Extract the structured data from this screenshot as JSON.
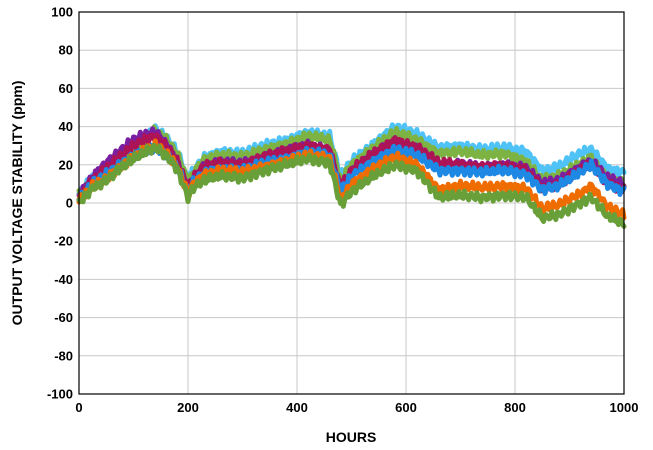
{
  "chart_data": {
    "type": "line",
    "xlabel": "HOURS",
    "ylabel": "OUTPUT VOLTAGE STABILITY (ppm)",
    "xlim": [
      0,
      1000
    ],
    "ylim": [
      -100,
      100
    ],
    "x_ticks": [
      "0",
      "200",
      "400",
      "600",
      "800",
      "1000"
    ],
    "y_ticks": [
      "100",
      "80",
      "60",
      "40",
      "20",
      "0",
      "-20",
      "-40",
      "-60",
      "-80",
      "-100"
    ],
    "grid": true,
    "x": [
      0,
      25,
      50,
      75,
      100,
      125,
      140,
      160,
      180,
      200,
      210,
      230,
      260,
      300,
      340,
      380,
      420,
      460,
      480,
      500,
      540,
      580,
      620,
      660,
      700,
      740,
      780,
      820,
      850,
      880,
      920,
      940,
      970,
      1000
    ],
    "series": [
      {
        "color": "#4fc3f7",
        "values": [
          5,
          13,
          18,
          24,
          30,
          35,
          39,
          34,
          27,
          12,
          17,
          24,
          27,
          26,
          30,
          33,
          37,
          35,
          14,
          22,
          31,
          40,
          36,
          29,
          30,
          28,
          29,
          27,
          17,
          19,
          26,
          28,
          18,
          16
        ]
      },
      {
        "color": "#7cb342",
        "values": [
          4,
          12,
          17,
          23,
          29,
          34,
          38,
          33,
          26,
          11,
          16,
          23,
          25,
          24,
          28,
          31,
          35,
          33,
          12,
          20,
          29,
          37,
          33,
          26,
          27,
          25,
          26,
          22,
          12,
          14,
          21,
          24,
          13,
          10
        ]
      },
      {
        "color": "#7b1fa2",
        "values": [
          4,
          14,
          21,
          27,
          33,
          36,
          37,
          31,
          22,
          7,
          13,
          19,
          21,
          21,
          24,
          27,
          30,
          28,
          7,
          16,
          25,
          32,
          29,
          19,
          20,
          19,
          20,
          18,
          10,
          12,
          19,
          22,
          13,
          10
        ]
      },
      {
        "color": "#ad1457",
        "values": [
          3,
          12,
          18,
          24,
          30,
          34,
          35,
          30,
          22,
          8,
          13,
          19,
          21,
          20,
          24,
          27,
          30,
          28,
          8,
          17,
          26,
          33,
          29,
          21,
          20,
          19,
          19,
          17,
          8,
          10,
          17,
          20,
          10,
          7
        ]
      },
      {
        "color": "#1e88e5",
        "values": [
          2,
          10,
          15,
          20,
          25,
          28,
          29,
          25,
          19,
          6,
          11,
          16,
          18,
          17,
          21,
          23,
          27,
          25,
          6,
          14,
          22,
          28,
          25,
          17,
          17,
          16,
          17,
          15,
          7,
          9,
          16,
          20,
          10,
          6
        ]
      },
      {
        "color": "#ef6c00",
        "values": [
          1,
          9,
          13,
          19,
          24,
          28,
          30,
          26,
          19,
          5,
          10,
          15,
          17,
          16,
          19,
          22,
          25,
          23,
          2,
          10,
          18,
          24,
          20,
          7,
          9,
          8,
          9,
          8,
          -3,
          -1,
          5,
          9,
          -2,
          -6
        ]
      },
      {
        "color": "#689f38",
        "values": [
          0,
          8,
          12,
          18,
          23,
          27,
          29,
          25,
          18,
          3,
          8,
          12,
          14,
          13,
          17,
          20,
          23,
          21,
          -1,
          6,
          14,
          20,
          17,
          3,
          4,
          3,
          4,
          3,
          -8,
          -6,
          0,
          3,
          -7,
          -11
        ]
      }
    ]
  }
}
